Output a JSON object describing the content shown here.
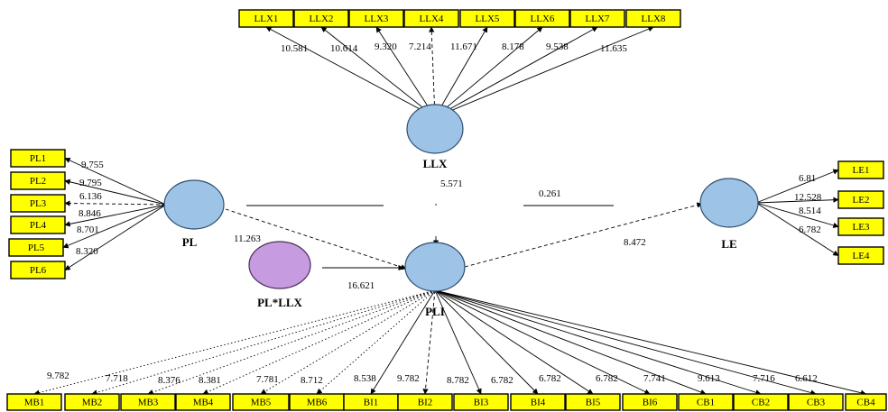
{
  "colors": {
    "indicator_fill": "#ffff00",
    "construct_fill": "#9dc3e6",
    "interaction_fill": "#c79be0",
    "line": "#000000"
  },
  "constructs": {
    "LLX": "LLX",
    "PL": "PL",
    "PLI": "PLI",
    "LE": "LE",
    "PLxLLX": "PL*LLX"
  },
  "indicators": {
    "LLX": [
      "LLX1",
      "LLX2",
      "LLX3",
      "LLX4",
      "LLX5",
      "LLX6",
      "LLX7",
      "LLX8"
    ],
    "PL": [
      "PL1",
      "PL2",
      "PL3",
      "PL4",
      "PL5",
      "PL6"
    ],
    "LE": [
      "LE1",
      "LE2",
      "LE3",
      "LE4"
    ],
    "PLI": [
      "MB1",
      "MB2",
      "MB3",
      "MB4",
      "MB5",
      "MB6",
      "BI1",
      "BI2",
      "BI3",
      "BI4",
      "BI5",
      "BI6",
      "CB1",
      "CB2",
      "CB3",
      "CB4"
    ]
  },
  "loadings": {
    "LLX": [
      "10.581",
      "10.614",
      "9.320",
      "7.214",
      "11.671",
      "8.178",
      "9.538",
      "11.635"
    ],
    "PL": [
      "9.755",
      "9.795",
      "6.136",
      "8.846",
      "8.701",
      "8.320"
    ],
    "LE": [
      "6.81",
      "12.528",
      "8.514",
      "6.782"
    ],
    "PLI": [
      "9.782",
      "7.718",
      "8.376",
      "8.381",
      "7.781",
      "8.712",
      "8.538",
      "9.782",
      "8.782",
      "6.782",
      "6.782",
      "6.782",
      "7.741",
      "9.613",
      "7.716",
      "6.612"
    ]
  },
  "paths": {
    "LLX_to_PLI": "5.571",
    "PL_to_PLI": "11.263",
    "PLxLLX_to_PLI": "16.621",
    "PLI_to_LE": "8.472",
    "PL_to_LE": "0.261"
  }
}
